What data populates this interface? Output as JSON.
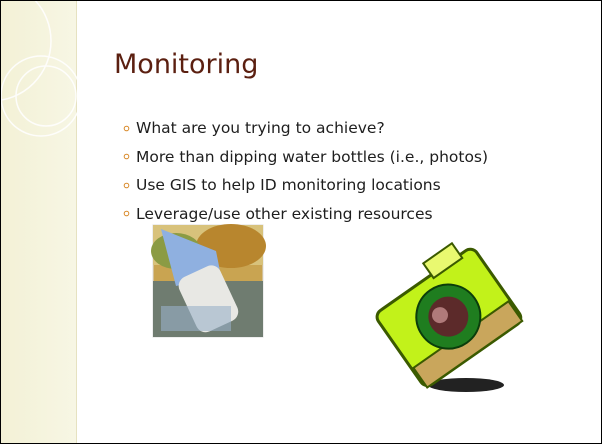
{
  "slide": {
    "title": "Monitoring",
    "bullets": [
      "What are you trying to achieve?",
      "More than dipping water bottles (i.e., photos)",
      "Use GIS to help ID monitoring locations",
      "Leverage/use other existing resources"
    ]
  }
}
